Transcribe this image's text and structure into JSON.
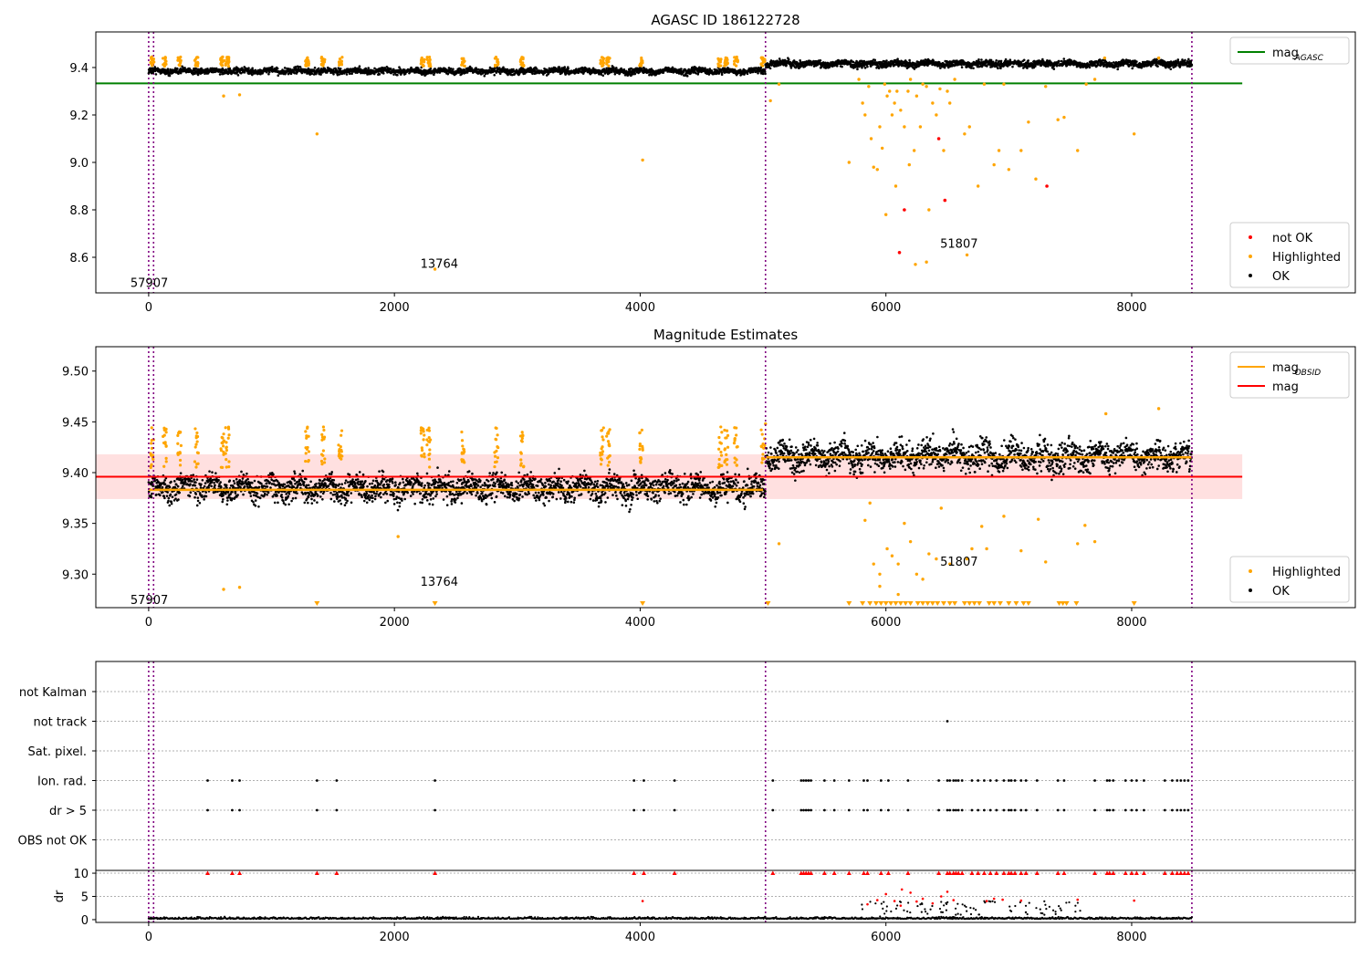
{
  "chart_data": [
    {
      "type": "scatter",
      "title": "AGASC ID 186122728",
      "xlim": [
        -430,
        9820
      ],
      "ylim": [
        8.45,
        9.55
      ],
      "xticks": [
        "0",
        "2000",
        "4000",
        "6000",
        "8000"
      ],
      "yticks": [
        "8.6",
        "8.8",
        "9.0",
        "9.2",
        "9.4"
      ],
      "obs_boundaries": [
        0,
        40,
        5020,
        8490
      ],
      "obs_annotations": [
        {
          "text": "57907",
          "x": 0,
          "y": 8.495
        },
        {
          "text": "13764",
          "x": 2360,
          "y": 8.575
        },
        {
          "text": "51807",
          "x": 6590,
          "y": 8.66
        }
      ],
      "mag_agasc": {
        "value": 9.333,
        "x_end": 8900
      },
      "series": [
        {
          "name": "OK",
          "color": "#000000",
          "band_segments": [
            {
              "x0": 0,
              "x1": 5020,
              "center": 9.385,
              "spread": 0.018
            },
            {
              "x0": 5020,
              "x1": 8490,
              "center": 9.416,
              "spread": 0.02
            }
          ]
        },
        {
          "name": "Highlighted",
          "color": "#ffa500",
          "clusters_x": [
            30,
            130,
            250,
            390,
            600,
            640,
            1290,
            1420,
            1560,
            2230,
            2280,
            2560,
            2830,
            3040,
            3690,
            3740,
            4010,
            4650,
            4700,
            4780,
            5000
          ],
          "outliers": [
            [
              610,
              9.28
            ],
            [
              740,
              9.285
            ],
            [
              1370,
              9.12
            ],
            [
              2330,
              8.55
            ],
            [
              4020,
              9.01
            ],
            [
              5060,
              9.26
            ],
            [
              5130,
              9.33
            ],
            [
              5700,
              9.0
            ],
            [
              5780,
              9.35
            ],
            [
              5810,
              9.25
            ],
            [
              5830,
              9.2
            ],
            [
              5860,
              9.32
            ],
            [
              5880,
              9.1
            ],
            [
              5900,
              8.98
            ],
            [
              5930,
              8.97
            ],
            [
              5950,
              9.15
            ],
            [
              5970,
              9.06
            ],
            [
              5990,
              9.33
            ],
            [
              6010,
              9.28
            ],
            [
              6030,
              9.3
            ],
            [
              6050,
              9.2
            ],
            [
              6070,
              9.25
            ],
            [
              6090,
              9.3
            ],
            [
              6120,
              9.22
            ],
            [
              6150,
              9.15
            ],
            [
              6180,
              9.3
            ],
            [
              6200,
              9.35
            ],
            [
              6230,
              9.05
            ],
            [
              6250,
              9.28
            ],
            [
              6280,
              9.15
            ],
            [
              6300,
              9.33
            ],
            [
              6330,
              9.32
            ],
            [
              6350,
              8.8
            ],
            [
              6380,
              9.25
            ],
            [
              6410,
              9.2
            ],
            [
              6440,
              9.31
            ],
            [
              6470,
              9.05
            ],
            [
              6500,
              9.3
            ],
            [
              6520,
              9.25
            ],
            [
              6560,
              9.35
            ],
            [
              6640,
              9.12
            ],
            [
              6660,
              8.61
            ],
            [
              6680,
              9.15
            ],
            [
              6750,
              8.9
            ],
            [
              6800,
              9.33
            ],
            [
              6880,
              8.99
            ],
            [
              6920,
              9.05
            ],
            [
              6960,
              9.33
            ],
            [
              7000,
              8.97
            ],
            [
              7100,
              9.05
            ],
            [
              7160,
              9.17
            ],
            [
              7220,
              8.93
            ],
            [
              7300,
              9.32
            ],
            [
              7400,
              9.18
            ],
            [
              7450,
              9.19
            ],
            [
              7560,
              9.05
            ],
            [
              7630,
              9.33
            ],
            [
              7700,
              9.35
            ],
            [
              7780,
              9.44
            ],
            [
              8020,
              9.12
            ],
            [
              8220,
              9.44
            ],
            [
              6000,
              8.78
            ],
            [
              6080,
              8.9
            ],
            [
              6240,
              8.57
            ],
            [
              6330,
              8.58
            ],
            [
              6190,
              8.99
            ]
          ]
        },
        {
          "name": "not OK",
          "color": "#ff0000",
          "points": [
            [
              6110,
              8.62
            ],
            [
              6150,
              8.8
            ],
            [
              6430,
              9.1
            ],
            [
              6480,
              8.84
            ],
            [
              7310,
              8.9
            ]
          ]
        }
      ],
      "legends": [
        {
          "items": [
            {
              "label": "mag",
              "sub": "AGASC",
              "type": "line",
              "color": "#008000"
            }
          ],
          "position": "top-right"
        },
        {
          "items": [
            {
              "label": "not OK",
              "type": "dot",
              "color": "#ff0000"
            },
            {
              "label": "Highlighted",
              "type": "dot",
              "color": "#ffa500"
            },
            {
              "label": "OK",
              "type": "dot",
              "color": "#000000"
            }
          ],
          "position": "bottom-right"
        }
      ]
    },
    {
      "type": "scatter",
      "title": "Magnitude Estimates",
      "xlim": [
        -430,
        9820
      ],
      "ylim": [
        9.267,
        9.524
      ],
      "xticks": [
        "0",
        "2000",
        "4000",
        "6000",
        "8000"
      ],
      "yticks": [
        "9.30",
        "9.35",
        "9.40",
        "9.45",
        "9.50"
      ],
      "obs_boundaries": [
        0,
        40,
        5020,
        8490
      ],
      "obs_annotations": [
        {
          "text": "57907",
          "x": 0,
          "y": 9.275
        },
        {
          "text": "13764",
          "x": 2360,
          "y": 9.293
        },
        {
          "text": "51807",
          "x": 6590,
          "y": 9.313
        }
      ],
      "mag": {
        "value": 9.396,
        "band": [
          9.374,
          9.418
        ],
        "x_end": 8900
      },
      "mag_obsid": [
        {
          "x0": 0,
          "x1": 5000,
          "value": 9.383
        },
        {
          "x0": 5020,
          "x1": 8490,
          "value": 9.415
        }
      ],
      "series": [
        {
          "name": "OK",
          "color": "#000000",
          "band_segments": [
            {
              "x0": 0,
              "x1": 5020,
              "center": 9.385,
              "spread": 0.018
            },
            {
              "x0": 5020,
              "x1": 8490,
              "center": 9.416,
              "spread": 0.02
            }
          ]
        },
        {
          "name": "Highlighted",
          "color": "#ffa500",
          "clusters_x": [
            30,
            130,
            250,
            390,
            600,
            640,
            1290,
            1420,
            1560,
            2230,
            2280,
            2560,
            2830,
            3040,
            3690,
            3740,
            4010,
            4650,
            4700,
            4780,
            5000
          ],
          "outliers": [
            [
              610,
              9.285
            ],
            [
              740,
              9.287
            ],
            [
              2030,
              9.337
            ],
            [
              5130,
              9.33
            ],
            [
              5830,
              9.353
            ],
            [
              5870,
              9.37
            ],
            [
              5900,
              9.31
            ],
            [
              5950,
              9.3
            ],
            [
              6010,
              9.325
            ],
            [
              6050,
              9.318
            ],
            [
              6100,
              9.31
            ],
            [
              6150,
              9.35
            ],
            [
              6200,
              9.332
            ],
            [
              6250,
              9.3
            ],
            [
              6300,
              9.295
            ],
            [
              6350,
              9.32
            ],
            [
              6410,
              9.315
            ],
            [
              6450,
              9.365
            ],
            [
              6520,
              9.31
            ],
            [
              6660,
              9.315
            ],
            [
              6700,
              9.325
            ],
            [
              6780,
              9.347
            ],
            [
              6820,
              9.325
            ],
            [
              6960,
              9.357
            ],
            [
              7100,
              9.323
            ],
            [
              7240,
              9.354
            ],
            [
              7300,
              9.312
            ],
            [
              7560,
              9.33
            ],
            [
              7620,
              9.348
            ],
            [
              7700,
              9.332
            ],
            [
              7790,
              9.458
            ],
            [
              8220,
              9.463
            ],
            [
              5020,
              9.448
            ],
            [
              5950,
              9.288
            ],
            [
              6100,
              9.28
            ]
          ],
          "clipped_x": [
            1370,
            2330,
            4020,
            5040,
            5700,
            5810,
            5870,
            5920,
            5960,
            6000,
            6040,
            6080,
            6120,
            6160,
            6200,
            6260,
            6300,
            6340,
            6380,
            6420,
            6470,
            6520,
            6560,
            6640,
            6680,
            6720,
            6760,
            6840,
            6880,
            6930,
            7000,
            7060,
            7120,
            7160,
            7410,
            7440,
            7470,
            7550,
            8020
          ]
        }
      ],
      "legends": [
        {
          "items": [
            {
              "label": "mag",
              "sub": "OBSID",
              "type": "line",
              "color": "#ffa500"
            },
            {
              "label": "mag",
              "type": "line",
              "color": "#ff0000"
            }
          ],
          "position": "top-right"
        },
        {
          "items": [
            {
              "label": "Highlighted",
              "type": "dot",
              "color": "#ffa500"
            },
            {
              "label": "OK",
              "type": "dot",
              "color": "#000000"
            }
          ],
          "position": "bottom-right"
        }
      ]
    },
    {
      "type": "scatter",
      "title": "",
      "xlim": [
        -430,
        9820
      ],
      "categories": [
        "not Kalman",
        "not track",
        "Sat. pixel.",
        "Ion. rad.",
        "dr > 5",
        "OBS not OK"
      ],
      "obs_boundaries": [
        0,
        40,
        5020,
        8490
      ],
      "flag_points": {
        "not track": [
          6500
        ],
        "Ion. rad.": [
          480,
          680,
          740,
          1370,
          1530,
          2330,
          3950,
          4030,
          4280,
          5080,
          5310,
          5330,
          5350,
          5370,
          5390,
          5500,
          5580,
          5700,
          5820,
          5850,
          5960,
          6020,
          6180,
          6430,
          6500,
          6520,
          6550,
          6570,
          6590,
          6620,
          6700,
          6750,
          6800,
          6850,
          6900,
          6960,
          7000,
          7020,
          7050,
          7100,
          7140,
          7230,
          7400,
          7450,
          7700,
          7800,
          7820,
          7850,
          7950,
          8000,
          8040,
          8100,
          8270,
          8330,
          8370,
          8400,
          8430,
          8460
        ]
      },
      "dr_panel": {
        "ylabel": "dr",
        "ylim": [
          -0.6,
          10.6
        ],
        "yticks": [
          "0",
          "5",
          "10"
        ],
        "clipped_x": [
          480,
          680,
          740,
          1370,
          1530,
          2330,
          3950,
          4030,
          4280,
          5080,
          5310,
          5330,
          5350,
          5370,
          5390,
          5500,
          5580,
          5700,
          5820,
          5850,
          5960,
          6020,
          6180,
          6430,
          6500,
          6520,
          6550,
          6570,
          6590,
          6620,
          6700,
          6750,
          6800,
          6850,
          6900,
          6960,
          7000,
          7020,
          7050,
          7100,
          7140,
          7230,
          7400,
          7450,
          7700,
          7800,
          7820,
          7850,
          7950,
          8000,
          8040,
          8100,
          8270,
          8330,
          8370,
          8400,
          8430,
          8460
        ],
        "red_points": [
          [
            4020,
            4.0
          ],
          [
            5930,
            4.2
          ],
          [
            6000,
            5.5
          ],
          [
            6070,
            4.0
          ],
          [
            6130,
            6.5
          ],
          [
            6200,
            5.8
          ],
          [
            6250,
            3.9
          ],
          [
            6300,
            4.5
          ],
          [
            6380,
            3.5
          ],
          [
            6450,
            5.0
          ],
          [
            6500,
            6.0
          ],
          [
            6550,
            4.2
          ],
          [
            6820,
            4.0
          ],
          [
            6880,
            4.5
          ],
          [
            6950,
            4.3
          ],
          [
            7100,
            4.1
          ],
          [
            7560,
            4.3
          ],
          [
            8020,
            4.1
          ],
          [
            5850,
            3.3
          ],
          [
            6120,
            3.0
          ]
        ],
        "xticks": [
          "0",
          "2000",
          "4000",
          "6000",
          "8000"
        ]
      }
    }
  ]
}
